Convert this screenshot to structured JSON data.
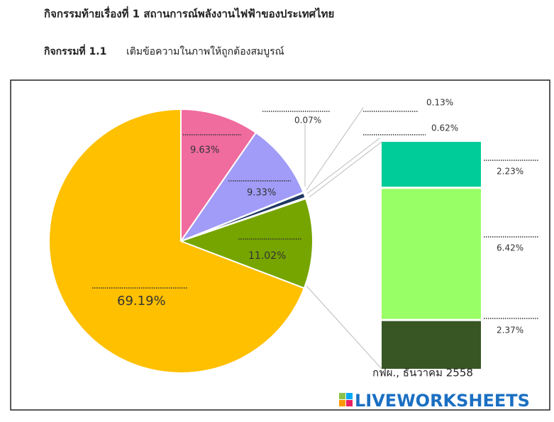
{
  "title": "กิจกรรมท้ายเรื่องที่ 1 สถานการณ์พลังงานไฟฟ้าของประเทศไทย",
  "activity_label": "กิจกรรมที่ 1.1",
  "instruction": "เติมข้อความในภาพให้ถูกต้องสมบูรณ์",
  "chart_data": [
    {
      "type": "pie",
      "values": [
        9.63,
        9.33,
        0.07,
        0.62,
        0.13,
        11.02,
        69.19
      ],
      "value_labels": [
        "9.63%",
        "9.33%",
        "0.07%",
        "0.62%",
        "0.13%",
        "11.02%",
        "69.19%"
      ],
      "colors": [
        "#f06b9e",
        "#a09cf7",
        "#d9d9d9",
        "#1f3864",
        "#bfbfbf",
        "#76a500",
        "#ffc000"
      ]
    },
    {
      "type": "stacked-bar",
      "values": [
        2.23,
        6.42,
        2.37
      ],
      "value_labels": [
        "2.23%",
        "6.42%",
        "2.37%"
      ],
      "colors": [
        "#00cc99",
        "#99ff66",
        "#375623"
      ]
    }
  ],
  "source": "กฟผ., ธันวาคม 2558",
  "watermark": "LIVEWORKSHEETS"
}
